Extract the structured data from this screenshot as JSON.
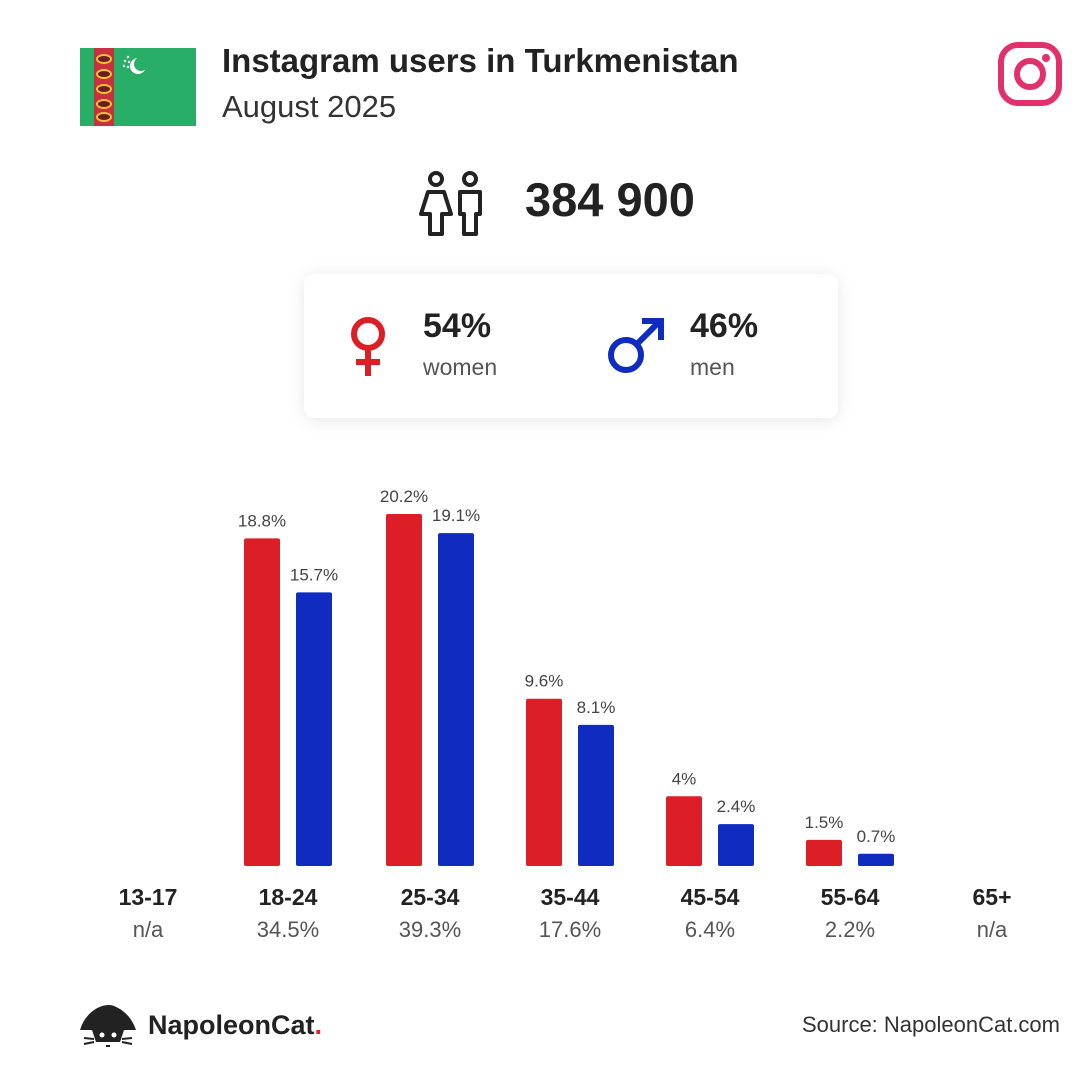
{
  "header": {
    "title": "Instagram users in Turkmenistan",
    "subtitle": "August 2025",
    "flag_icon": "turkmenistan-flag",
    "platform_icon": "instagram-icon",
    "platform_color": "#e1306c"
  },
  "total": {
    "icon": "people-icon",
    "value": "384 900"
  },
  "gender": {
    "women": {
      "pct": "54%",
      "label": "women",
      "icon": "female-icon",
      "color": "#dc1f26"
    },
    "men": {
      "pct": "46%",
      "label": "men",
      "icon": "male-icon",
      "color": "#0f2bc0"
    }
  },
  "chart_data": {
    "type": "bar",
    "categories": [
      "13-17",
      "18-24",
      "25-34",
      "35-44",
      "45-54",
      "55-64",
      "65+"
    ],
    "category_share": [
      "n/a",
      "34.5%",
      "39.3%",
      "17.6%",
      "6.4%",
      "2.2%",
      "n/a"
    ],
    "series": [
      {
        "name": "women",
        "color": "#dc1f26",
        "values": [
          null,
          18.8,
          20.2,
          9.6,
          4,
          1.5,
          null
        ],
        "labels": [
          "",
          "18.8%",
          "20.2%",
          "9.6%",
          "4%",
          "1.5%",
          ""
        ]
      },
      {
        "name": "men",
        "color": "#0f2bc0",
        "values": [
          null,
          15.7,
          19.1,
          8.1,
          2.4,
          0.7,
          null
        ],
        "labels": [
          "",
          "15.7%",
          "19.1%",
          "8.1%",
          "2.4%",
          "0.7%",
          ""
        ]
      }
    ],
    "ylim": [
      0,
      20.2
    ],
    "grid": false,
    "legend": "none"
  },
  "footer": {
    "brand": "NapoleonCat",
    "brand_dot": ".",
    "brand_icon": "napoleoncat-logo",
    "source": "Source: NapoleonCat.com"
  }
}
